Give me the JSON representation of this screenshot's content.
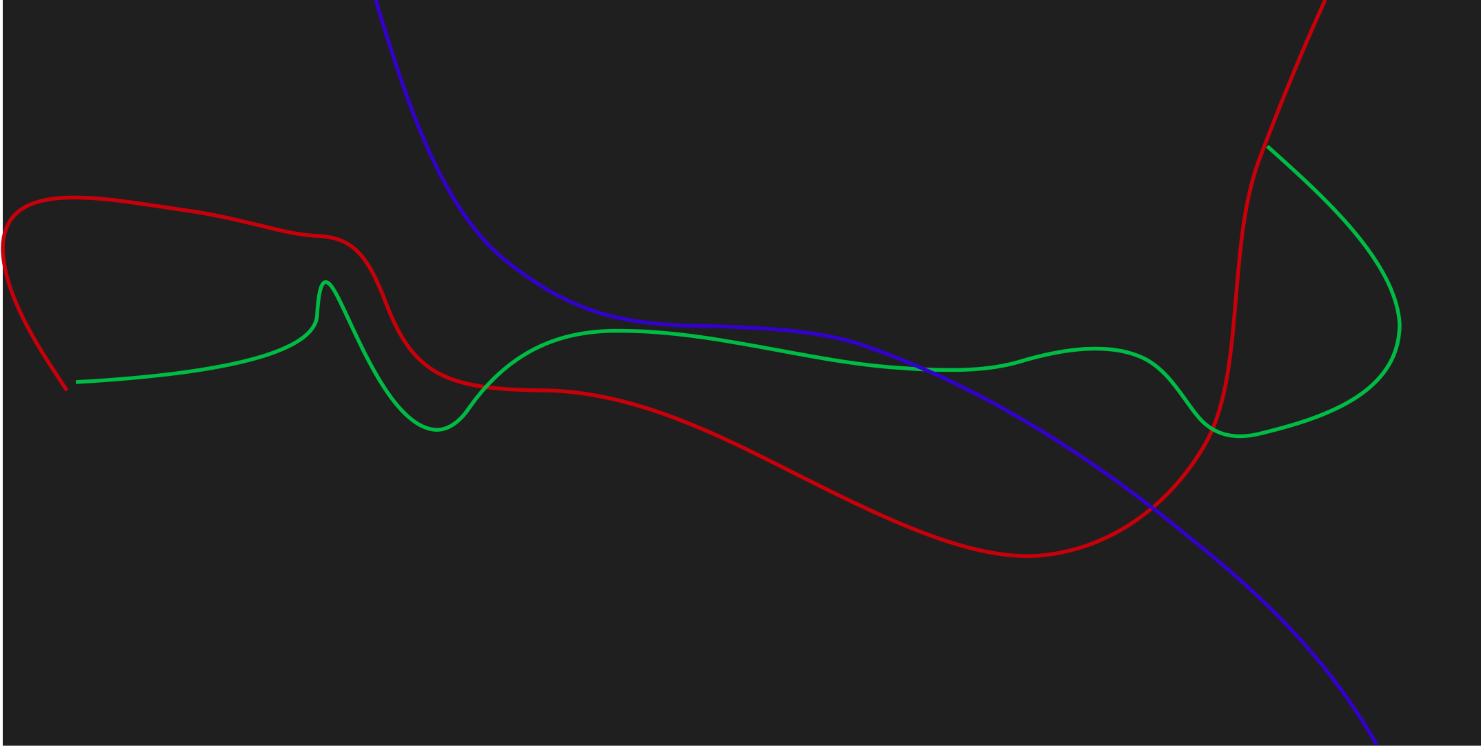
{
  "canvas": {
    "background_color": "#1f1f1f",
    "border_color": "#ffffff"
  },
  "curves": [
    {
      "name": "red-curve",
      "color": "#c8000a"
    },
    {
      "name": "green-curve",
      "color": "#00bb44"
    },
    {
      "name": "blue-curve",
      "color": "#3300cc"
    }
  ]
}
